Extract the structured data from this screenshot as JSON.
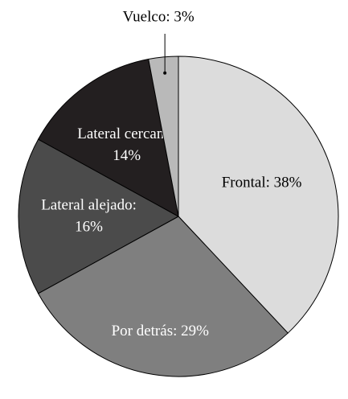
{
  "chart_data": {
    "type": "pie",
    "values": [
      38,
      29,
      16,
      14,
      3
    ],
    "value_labels": [
      [
        "Frontal: 38%"
      ],
      [
        "Por detrás: 29%"
      ],
      [
        "Lateral alejado:",
        "16%"
      ],
      [
        "Lateral cercano:",
        "14%"
      ],
      [
        "Vuelco: 3%"
      ]
    ],
    "colors": [
      "#dcdcdc",
      "#7f7f7f",
      "#4b4b4b",
      "#231f20",
      "#b9b9b9"
    ],
    "label_colors": [
      "#000000",
      "#ffffff",
      "#ffffff",
      "#ffffff",
      "#000000"
    ]
  }
}
